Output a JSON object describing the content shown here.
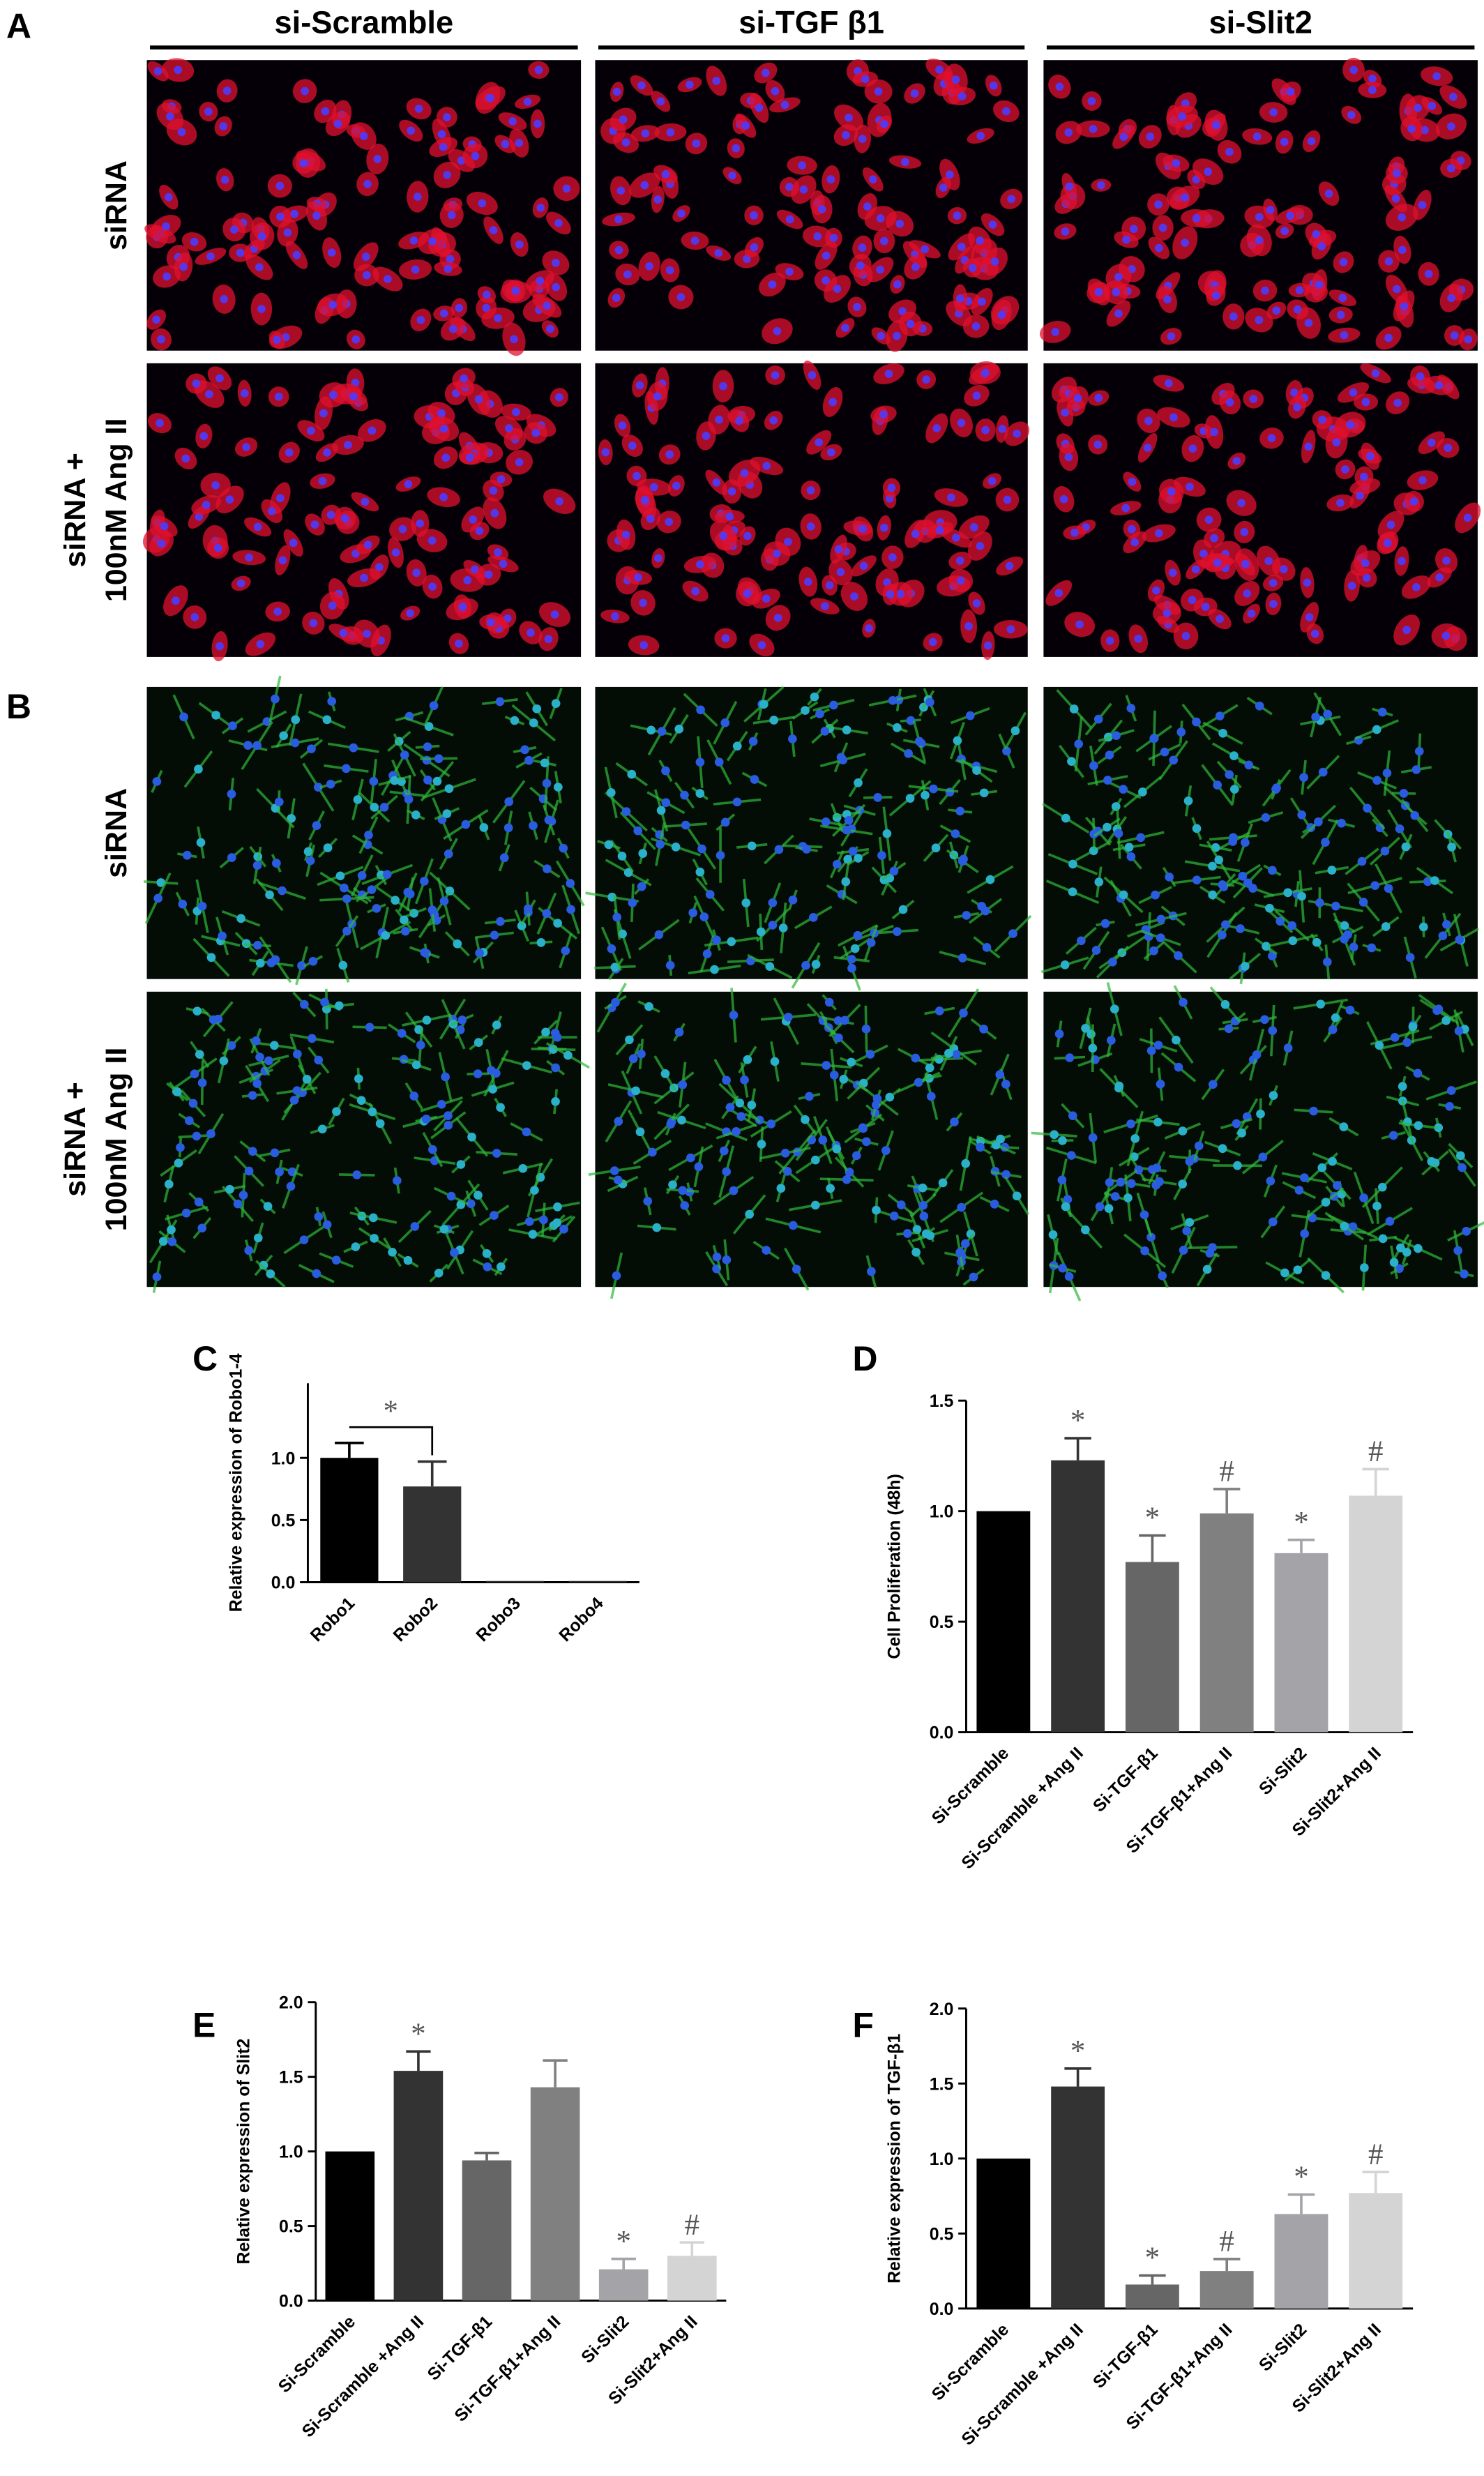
{
  "figure": {
    "panels": [
      "A",
      "B"
    ],
    "columns": [
      "si-Scramble",
      "si-TGF β1",
      "si-Slit2"
    ],
    "rows": [
      [
        "siRNA"
      ],
      [
        "siRNA +",
        "100nM Ang II"
      ]
    ]
  },
  "chart_data": [
    {
      "type": "bar",
      "panel": "C",
      "y_label": "Relative expression of Robo1-4",
      "categories": [
        "Robo1",
        "Robo2",
        "Robo3",
        "Robo4"
      ],
      "series": [
        {
          "values": [
            1.0,
            0.77,
            0.01,
            0.01
          ],
          "errors": [
            0.12,
            0.2,
            0,
            0
          ],
          "colors": [
            "#000000",
            "#333333",
            "#333333",
            "#333333"
          ]
        }
      ],
      "ylim": [
        0,
        1.6
      ],
      "yticks": [
        {
          "value": 0,
          "label": "0.0"
        },
        0.5,
        {
          "value": 1,
          "label": "1.0"
        }
      ],
      "annotations": [
        {
          "text": "*",
          "from": "Robo1",
          "to": "Robo2"
        }
      ]
    },
    {
      "type": "bar",
      "panel": "D",
      "y_label": "Cell Proliferation (48h)",
      "categories": [
        "Si-Scramble",
        "Si-Scramble +Ang II",
        "Si-TGF-β1",
        "Si-TGF-β1+Ang II",
        "Si-Slit2",
        "Si-Slit2+Ang II"
      ],
      "series": [
        {
          "values": [
            1.0,
            1.23,
            0.77,
            0.99,
            0.81,
            1.07
          ],
          "errors": [
            0,
            0.1,
            0.12,
            0.11,
            0.06,
            0.12
          ],
          "colors": [
            "#000000",
            "#333333",
            "#666666",
            "#808080",
            "#a3a3a8",
            "#d4d4d4"
          ]
        }
      ],
      "ylim": [
        0,
        1.5
      ],
      "yticks": [
        {
          "value": 0,
          "label": "0.0"
        },
        0.5,
        {
          "value": 1,
          "label": "1.0"
        },
        1.5
      ],
      "annotations": [
        {
          "x": "Si-Scramble +Ang II",
          "text": "*"
        },
        {
          "x": "Si-TGF-β1",
          "text": "*"
        },
        {
          "x": "Si-TGF-β1+Ang II",
          "text": "#"
        },
        {
          "x": "Si-Slit2",
          "text": "*"
        },
        {
          "x": "Si-Slit2+Ang II",
          "text": "#"
        }
      ]
    },
    {
      "type": "bar",
      "panel": "E",
      "y_label": "Relative expression of Slit2",
      "categories": [
        "Si-Scramble",
        "Si-Scramble +Ang II",
        "Si-TGF-β1",
        "Si-TGF-β1+Ang II",
        "Si-Slit2",
        "Si-Slit2+Ang II"
      ],
      "series": [
        {
          "values": [
            1.0,
            1.54,
            0.94,
            1.43,
            0.21,
            0.3
          ],
          "errors": [
            0,
            0.13,
            0.05,
            0.18,
            0.07,
            0.09
          ],
          "colors": [
            "#000000",
            "#333333",
            "#666666",
            "#808080",
            "#a3a3a8",
            "#d4d4d4"
          ]
        }
      ],
      "ylim": [
        0,
        2
      ],
      "yticks": [
        {
          "value": 0,
          "label": "0.0"
        },
        0.5,
        {
          "value": 1,
          "label": "1.0"
        },
        1.5,
        {
          "value": 2,
          "label": "2.0"
        }
      ],
      "annotations": [
        {
          "x": "Si-Scramble +Ang II",
          "text": "*"
        },
        {
          "x": "Si-Slit2",
          "text": "*"
        },
        {
          "x": "Si-Slit2+Ang II",
          "text": "#"
        }
      ]
    },
    {
      "type": "bar",
      "panel": "F",
      "y_label": "Relative expression of TGF-β1",
      "categories": [
        "Si-Scramble",
        "Si-Scramble +Ang II",
        "Si-TGF-β1",
        "Si-TGF-β1+Ang II",
        "Si-Slit2",
        "Si-Slit2+Ang II"
      ],
      "series": [
        {
          "values": [
            1.0,
            1.48,
            0.16,
            0.25,
            0.63,
            0.77
          ],
          "errors": [
            0,
            0.12,
            0.06,
            0.08,
            0.13,
            0.14
          ],
          "colors": [
            "#000000",
            "#333333",
            "#666666",
            "#808080",
            "#a3a3a8",
            "#d4d4d4"
          ]
        }
      ],
      "ylim": [
        0,
        2
      ],
      "yticks": [
        {
          "value": 0,
          "label": "0.0"
        },
        0.5,
        {
          "value": 1,
          "label": "1.0"
        },
        1.5,
        {
          "value": 2,
          "label": "2.0"
        }
      ],
      "annotations": [
        {
          "x": "Si-Scramble +Ang II",
          "text": "*"
        },
        {
          "x": "Si-TGF-β1",
          "text": "*"
        },
        {
          "x": "Si-TGF-β1+Ang II",
          "text": "#"
        },
        {
          "x": "Si-Slit2",
          "text": "*"
        },
        {
          "x": "Si-Slit2+Ang II",
          "text": "#"
        }
      ]
    }
  ]
}
